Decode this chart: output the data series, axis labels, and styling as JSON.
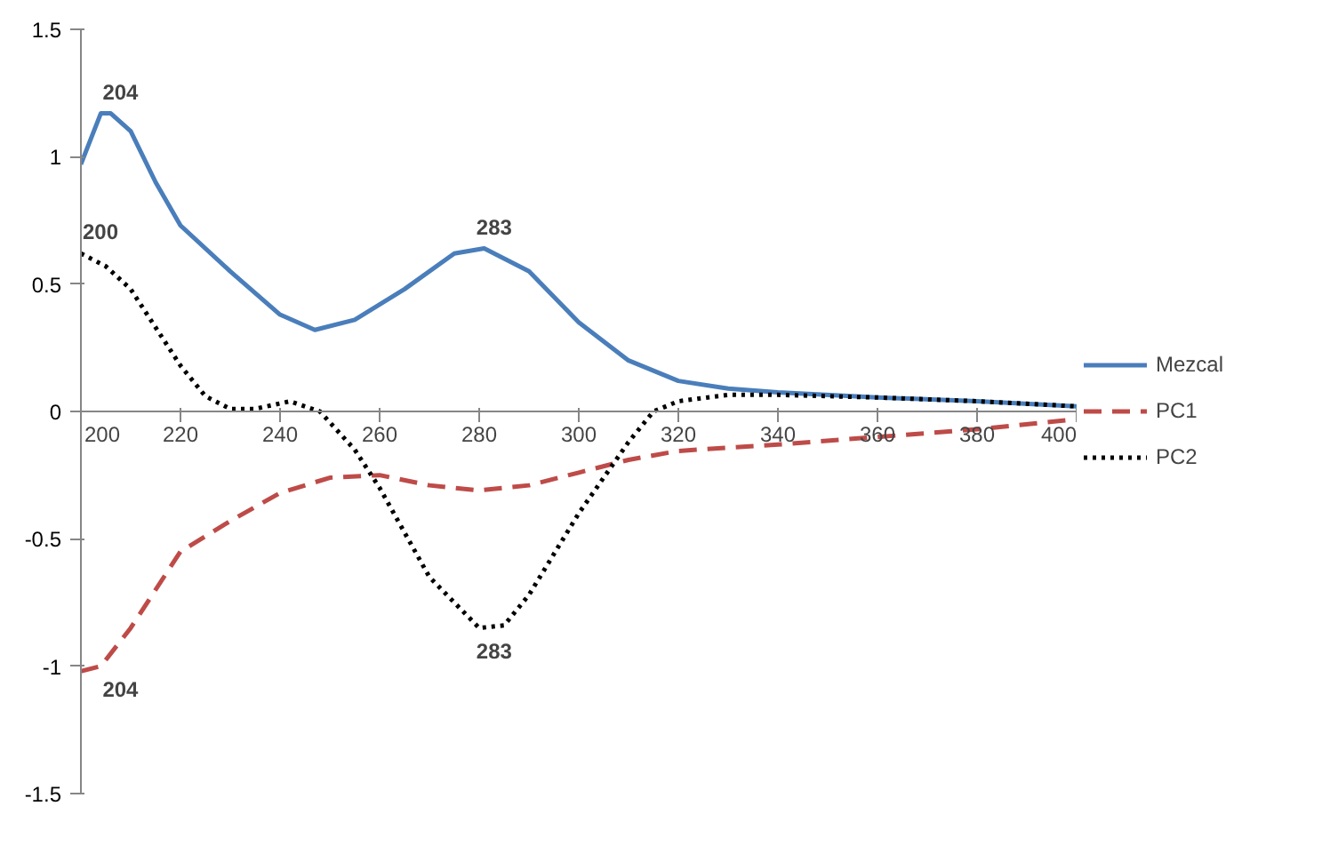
{
  "chart_data": {
    "type": "line",
    "x": [
      200,
      204,
      206,
      210,
      215,
      220,
      230,
      240,
      247,
      255,
      265,
      275,
      281,
      290,
      300,
      310,
      320,
      330,
      340,
      360,
      380,
      400
    ],
    "series": [
      {
        "name": "Mezcal",
        "color": "#4a7ebb",
        "line_style": "solid",
        "values": [
          0.97,
          1.17,
          1.17,
          1.1,
          0.9,
          0.73,
          0.55,
          0.38,
          0.32,
          0.36,
          0.48,
          0.62,
          0.64,
          0.55,
          0.35,
          0.2,
          0.12,
          0.09,
          0.075,
          0.055,
          0.04,
          0.02
        ]
      },
      {
        "name": "PC1",
        "color": "#be4b48",
        "line_style": "dashed",
        "x": [
          200,
          204,
          210,
          220,
          230,
          240,
          250,
          260,
          270,
          280,
          290,
          300,
          310,
          320,
          340,
          360,
          380,
          400
        ],
        "values": [
          -1.02,
          -1.0,
          -0.85,
          -0.55,
          -0.43,
          -0.32,
          -0.26,
          -0.25,
          -0.29,
          -0.31,
          -0.29,
          -0.24,
          -0.19,
          -0.155,
          -0.13,
          -0.1,
          -0.07,
          -0.03
        ]
      },
      {
        "name": "PC2",
        "color": "#000000",
        "line_style": "dotted",
        "x": [
          200,
          205,
          210,
          215,
          220,
          225,
          230,
          235,
          242,
          248,
          255,
          260,
          270,
          280,
          285,
          290,
          300,
          310,
          315,
          320,
          330,
          340,
          360,
          380,
          400
        ],
        "values": [
          0.62,
          0.57,
          0.48,
          0.33,
          0.18,
          0.06,
          0.01,
          0.01,
          0.04,
          0.0,
          -0.15,
          -0.3,
          -0.65,
          -0.85,
          -0.84,
          -0.72,
          -0.4,
          -0.12,
          0.0,
          0.04,
          0.065,
          0.065,
          0.055,
          0.04,
          0.02
        ]
      }
    ],
    "annotations": [
      {
        "text": "204",
        "x": 204,
        "y": 1.17
      },
      {
        "text": "200",
        "x": 200,
        "y": 0.62
      },
      {
        "text": "283",
        "x": 283,
        "y": 0.64
      },
      {
        "text": "283",
        "x": 283,
        "y": -0.85
      },
      {
        "text": "204",
        "x": 204,
        "y": -1.0
      }
    ],
    "xlim": [
      200,
      400
    ],
    "ylim": [
      -1.5,
      1.5
    ],
    "xticks": [
      200,
      220,
      240,
      260,
      280,
      300,
      320,
      340,
      360,
      380,
      400
    ],
    "yticks": [
      -1.5,
      -1,
      -0.5,
      0,
      0.5,
      1,
      1.5
    ],
    "grid": false,
    "legend": "right",
    "marker": "none"
  }
}
